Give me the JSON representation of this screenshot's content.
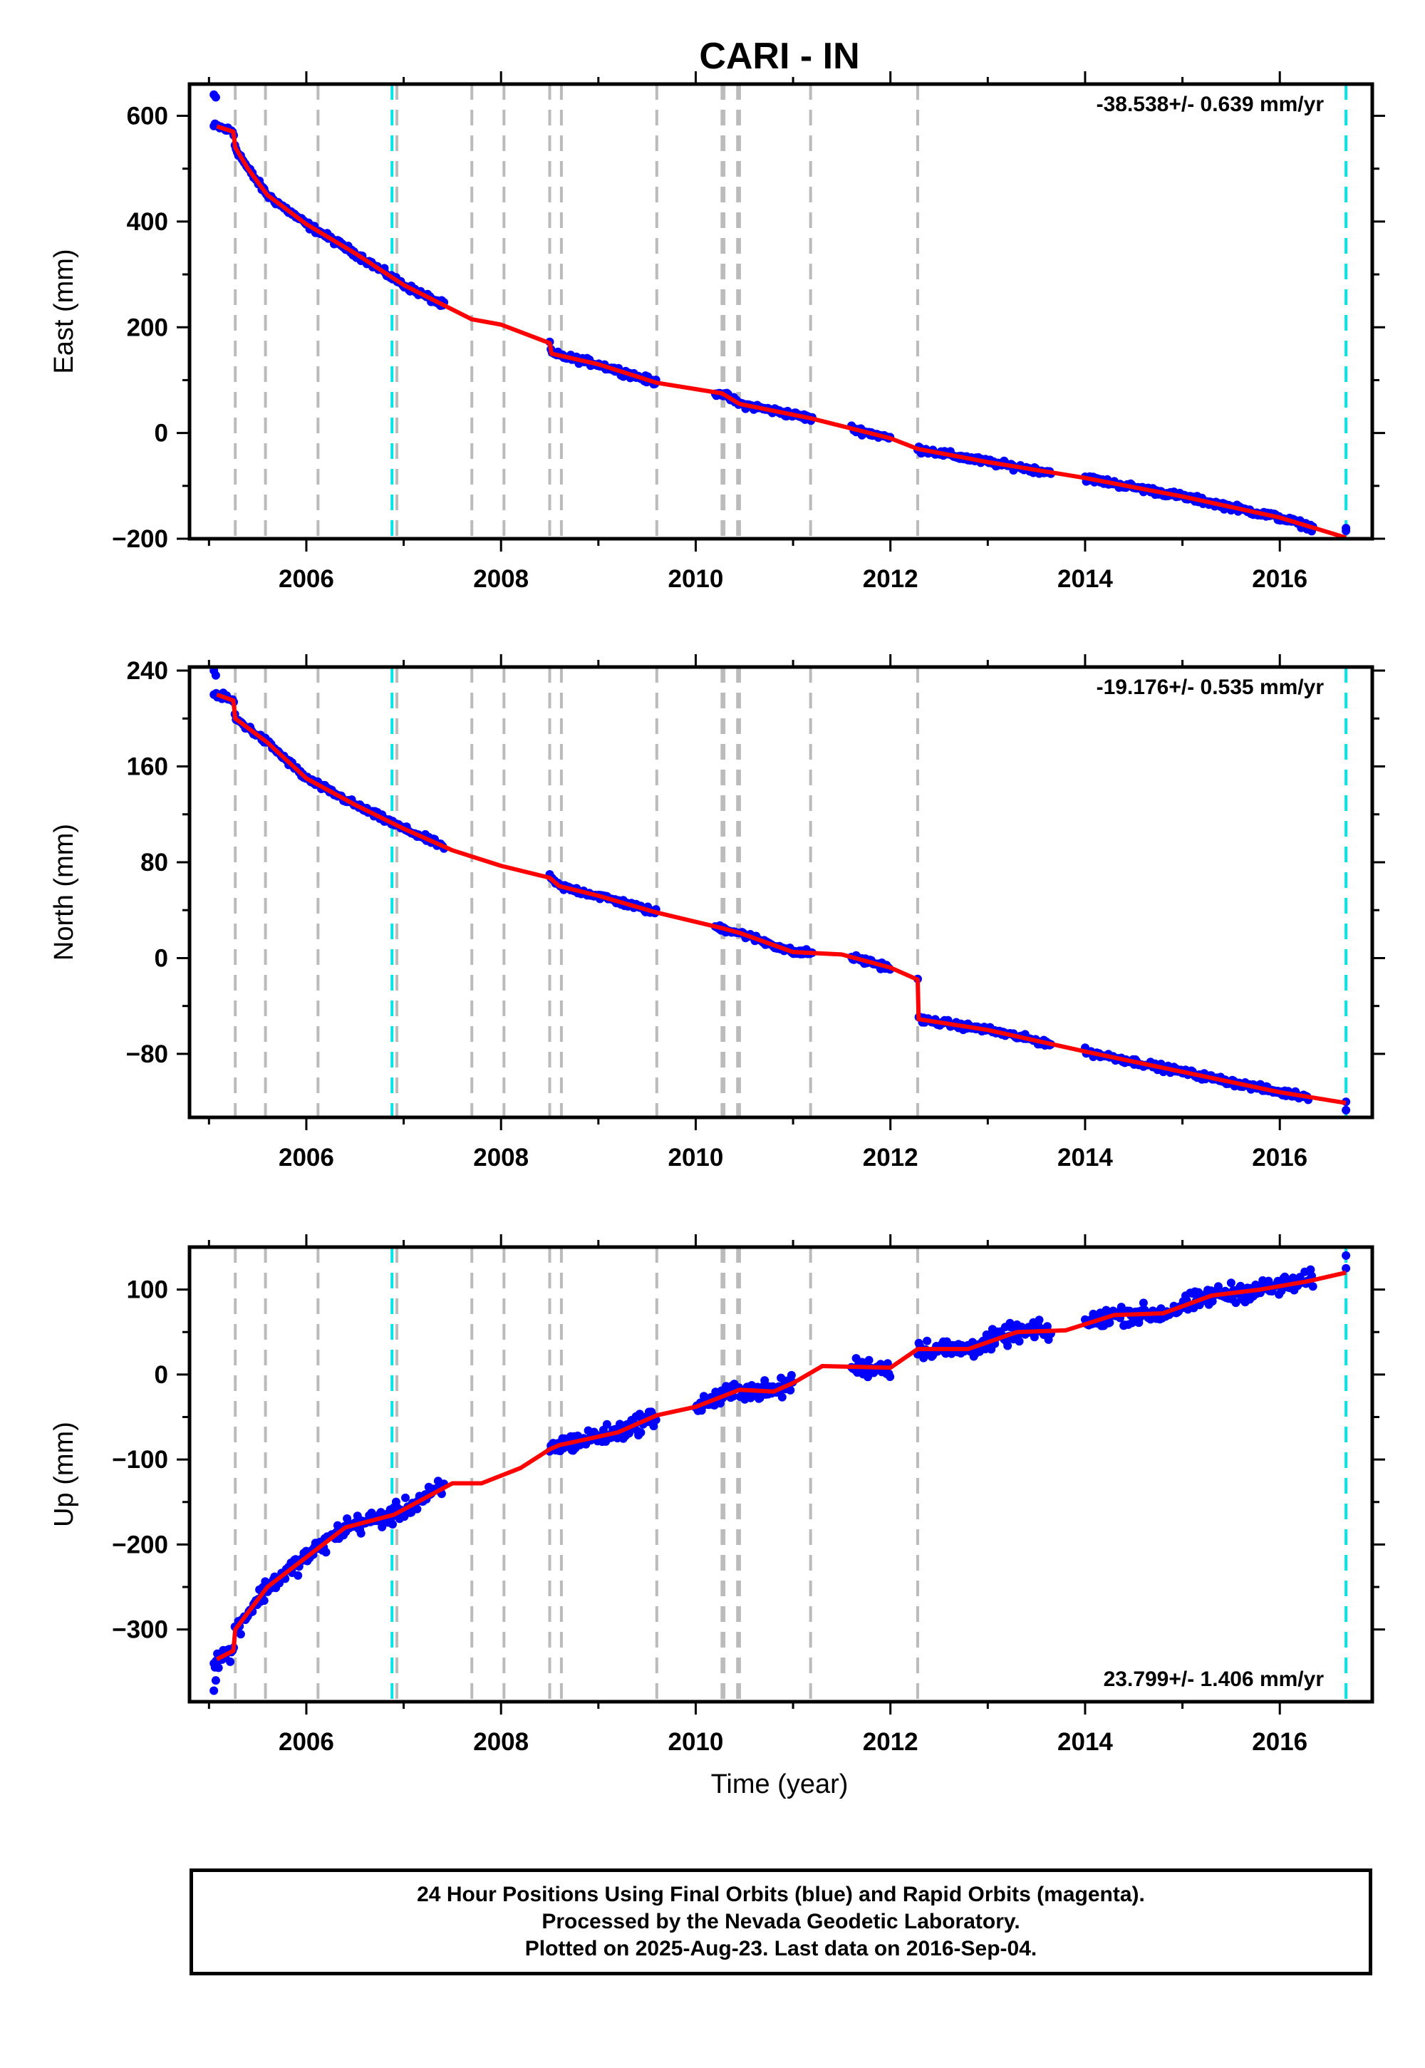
{
  "chart_data": {
    "title": "CARI - IN",
    "type": "scatter",
    "xlabel": "Time (year)",
    "x_tick_labels": [
      "2006",
      "2008",
      "2010",
      "2012",
      "2014",
      "2016"
    ],
    "xlim": [
      2004.8,
      2016.95
    ],
    "event_lines": {
      "gray_dashed": [
        2005.27,
        2005.58,
        2006.12,
        2006.93,
        2007.7,
        2008.03,
        2008.5,
        2008.62,
        2009.6,
        2010.27,
        2010.29,
        2010.43,
        2010.45,
        2011.18,
        2012.28
      ],
      "cyan_dashed": [
        2006.88,
        2016.68
      ]
    },
    "colors": {
      "final_orbits": "#0000ff",
      "rapid_orbits": "#ff00ff",
      "model": "#ff0000",
      "gray_event": "#bbbbbb",
      "cyan_event": "#00e5e5"
    },
    "panels": [
      {
        "name": "east",
        "ylabel": "East (mm)",
        "ylim": [
          -200,
          660
        ],
        "y_ticks": [
          -200,
          0,
          200,
          400,
          600
        ],
        "y_tick_labels": [
          "−200",
          "0",
          "200",
          "400",
          "600"
        ],
        "rate_text": "-38.538+/- 0.639 mm/yr",
        "rate_position": "top-right",
        "model": [
          [
            2005.08,
            580
          ],
          [
            2005.25,
            570
          ],
          [
            2005.27,
            540
          ],
          [
            2005.4,
            500
          ],
          [
            2005.6,
            450
          ],
          [
            2006.0,
            395
          ],
          [
            2006.5,
            340
          ],
          [
            2007.0,
            280
          ],
          [
            2007.7,
            215
          ],
          [
            2008.0,
            205
          ],
          [
            2008.5,
            170
          ],
          [
            2008.52,
            150
          ],
          [
            2009.0,
            130
          ],
          [
            2009.6,
            95
          ],
          [
            2010.27,
            75
          ],
          [
            2010.45,
            55
          ],
          [
            2011.18,
            28
          ],
          [
            2012.0,
            -10
          ],
          [
            2012.28,
            -30
          ],
          [
            2013.0,
            -55
          ],
          [
            2014.0,
            -85
          ],
          [
            2015.0,
            -120
          ],
          [
            2016.0,
            -160
          ],
          [
            2016.68,
            -198
          ]
        ],
        "obs_segments": [
          [
            2005.05,
            2007.42
          ],
          [
            2008.5,
            2009.6
          ],
          [
            2010.2,
            2011.2
          ],
          [
            2011.6,
            2012.0
          ],
          [
            2012.28,
            2013.65
          ],
          [
            2014.0,
            2016.35
          ]
        ],
        "obs_extra": [
          [
            2016.68,
            -185
          ],
          [
            2016.68,
            -180
          ],
          [
            2005.05,
            640
          ],
          [
            2005.07,
            635
          ]
        ]
      },
      {
        "name": "north",
        "ylabel": "North (mm)",
        "ylim": [
          -133,
          243
        ],
        "y_ticks": [
          -80,
          0,
          80,
          160,
          240
        ],
        "y_tick_labels": [
          "−80",
          "0",
          "80",
          "160",
          "240"
        ],
        "rate_text": "-19.176+/- 0.535 mm/yr",
        "rate_position": "top-right",
        "model": [
          [
            2005.08,
            220
          ],
          [
            2005.25,
            215
          ],
          [
            2005.27,
            200
          ],
          [
            2005.6,
            180
          ],
          [
            2006.0,
            150
          ],
          [
            2006.5,
            128
          ],
          [
            2007.0,
            108
          ],
          [
            2007.5,
            90
          ],
          [
            2008.0,
            77
          ],
          [
            2008.5,
            67
          ],
          [
            2008.6,
            60
          ],
          [
            2009.0,
            52
          ],
          [
            2009.6,
            38
          ],
          [
            2010.27,
            25
          ],
          [
            2010.45,
            21
          ],
          [
            2011.0,
            5
          ],
          [
            2011.5,
            3
          ],
          [
            2012.0,
            -8
          ],
          [
            2012.28,
            -18
          ],
          [
            2012.29,
            -51
          ],
          [
            2013.0,
            -60
          ],
          [
            2014.0,
            -78
          ],
          [
            2015.0,
            -95
          ],
          [
            2016.0,
            -112
          ],
          [
            2016.68,
            -121
          ]
        ],
        "obs_segments": [
          [
            2005.05,
            2007.42
          ],
          [
            2008.5,
            2009.6
          ],
          [
            2010.2,
            2011.2
          ],
          [
            2011.6,
            2012.0
          ],
          [
            2012.28,
            2013.65
          ],
          [
            2014.0,
            2016.3
          ]
        ],
        "obs_extra": [
          [
            2016.68,
            -127
          ],
          [
            2016.68,
            -120
          ],
          [
            2005.05,
            240
          ],
          [
            2005.07,
            236
          ]
        ]
      },
      {
        "name": "up",
        "ylabel": "Up (mm)",
        "ylim": [
          -385,
          150
        ],
        "y_ticks": [
          -300,
          -200,
          -100,
          0,
          100
        ],
        "y_tick_labels": [
          "−300",
          "−200",
          "−100",
          "0",
          "100"
        ],
        "rate_text": "23.799+/- 1.406 mm/yr",
        "rate_position": "bottom-right",
        "model": [
          [
            2005.08,
            -335
          ],
          [
            2005.25,
            -325
          ],
          [
            2005.27,
            -300
          ],
          [
            2005.6,
            -250
          ],
          [
            2006.0,
            -215
          ],
          [
            2006.4,
            -180
          ],
          [
            2006.9,
            -165
          ],
          [
            2007.5,
            -128
          ],
          [
            2007.8,
            -128
          ],
          [
            2008.2,
            -110
          ],
          [
            2008.5,
            -88
          ],
          [
            2008.6,
            -83
          ],
          [
            2009.2,
            -68
          ],
          [
            2009.6,
            -48
          ],
          [
            2010.0,
            -38
          ],
          [
            2010.45,
            -18
          ],
          [
            2010.8,
            -20
          ],
          [
            2011.0,
            -10
          ],
          [
            2011.3,
            10
          ],
          [
            2012.0,
            8
          ],
          [
            2012.28,
            30
          ],
          [
            2012.8,
            30
          ],
          [
            2013.3,
            50
          ],
          [
            2013.8,
            52
          ],
          [
            2014.3,
            70
          ],
          [
            2014.8,
            72
          ],
          [
            2015.3,
            93
          ],
          [
            2015.8,
            100
          ],
          [
            2016.3,
            110
          ],
          [
            2016.68,
            120
          ]
        ],
        "obs_segments": [
          [
            2005.05,
            2007.42
          ],
          [
            2008.5,
            2009.6
          ],
          [
            2010.0,
            2011.0
          ],
          [
            2011.6,
            2012.0
          ],
          [
            2012.28,
            2013.65
          ],
          [
            2014.0,
            2016.35
          ]
        ],
        "obs_extra": [
          [
            2016.68,
            140
          ],
          [
            2016.68,
            125
          ],
          [
            2005.05,
            -372
          ],
          [
            2005.07,
            -360
          ]
        ]
      }
    ]
  },
  "footer": {
    "line1": "24 Hour Positions Using Final Orbits (blue) and Rapid Orbits (magenta).",
    "line2": "Processed by the Nevada Geodetic Laboratory.",
    "line3": "Plotted on 2025-Aug-23. Last data on 2016-Sep-04."
  }
}
